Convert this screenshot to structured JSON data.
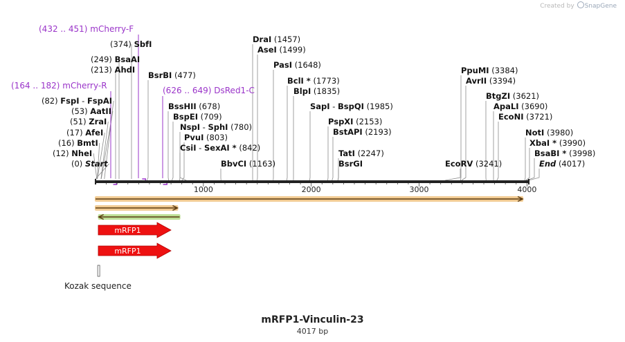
{
  "credit": {
    "prefix": "Created by",
    "brand": "SnapGene"
  },
  "map_title": "mRFP1-Vinculin-23",
  "map_subtitle": "4017 bp",
  "sequence_length": 4017,
  "ruler_ticks": [
    "1000",
    "2000",
    "3000",
    "4000"
  ],
  "sites": [
    {
      "name": "Start",
      "pos": "(0)",
      "bp": 0,
      "italic": true
    },
    {
      "name": "NheI",
      "pos": "(12)",
      "bp": 12
    },
    {
      "name": "BmtI",
      "pos": "(16)",
      "bp": 16
    },
    {
      "name": "AfeI",
      "pos": "(17)",
      "bp": 17
    },
    {
      "name": "ZraI",
      "pos": "(51)",
      "bp": 51
    },
    {
      "name": "AatII",
      "pos": "(53)",
      "bp": 53
    },
    {
      "name": "FspI",
      "name2": "FspAI",
      "pos": "(82)",
      "bp": 82
    },
    {
      "name": "AhdI",
      "pos": "(213)",
      "bp": 213
    },
    {
      "name": "BsaAI",
      "pos": "(249)",
      "bp": 249
    },
    {
      "name": "SbfI",
      "pos": "(374)",
      "bp": 374
    },
    {
      "name": "BsrBI",
      "pos": "(477)",
      "bp": 477
    },
    {
      "name": "BssHII",
      "pos": "(678)",
      "bp": 678
    },
    {
      "name": "BspEI",
      "pos": "(709)",
      "bp": 709
    },
    {
      "name": "NspI",
      "name2": "SphI",
      "pos": "(780)",
      "bp": 780
    },
    {
      "name": "PvuI",
      "pos": "(803)",
      "bp": 803
    },
    {
      "name": "CsiI",
      "name2": "SexAI *",
      "pos": "(842)",
      "bp": 842
    },
    {
      "name": "BbvCI",
      "pos": "(1163)",
      "bp": 1163
    },
    {
      "name": "DraI",
      "pos": "(1457)",
      "bp": 1457
    },
    {
      "name": "AseI",
      "pos": "(1499)",
      "bp": 1499
    },
    {
      "name": "PasI",
      "pos": "(1648)",
      "bp": 1648
    },
    {
      "name": "BclI *",
      "pos": "(1773)",
      "bp": 1773
    },
    {
      "name": "BlpI",
      "pos": "(1835)",
      "bp": 1835
    },
    {
      "name": "SapI",
      "name2": "BspQI",
      "pos": "(1985)",
      "bp": 1985
    },
    {
      "name": "PspXI",
      "pos": "(2153)",
      "bp": 2153
    },
    {
      "name": "BstAPI",
      "pos": "(2193)",
      "bp": 2193
    },
    {
      "name": "TatI",
      "pos": "(2247)",
      "bp": 2247
    },
    {
      "name": "BsrGI",
      "pos": "",
      "bp": 2247
    },
    {
      "name": "EcoRV",
      "pos": "(3241)",
      "bp": 3241
    },
    {
      "name": "PpuMI",
      "pos": "(3384)",
      "bp": 3384
    },
    {
      "name": "AvrII",
      "pos": "(3394)",
      "bp": 3394
    },
    {
      "name": "BtgZI",
      "pos": "(3621)",
      "bp": 3621
    },
    {
      "name": "ApaLI",
      "pos": "(3690)",
      "bp": 3690
    },
    {
      "name": "EcoNI",
      "pos": "(3721)",
      "bp": 3721
    },
    {
      "name": "NotI",
      "pos": "(3980)",
      "bp": 3980
    },
    {
      "name": "XbaI *",
      "pos": "(3990)",
      "bp": 3990
    },
    {
      "name": "BsaBI *",
      "pos": "(3998)",
      "bp": 3998
    },
    {
      "name": "End",
      "pos": "(4017)",
      "bp": 4017,
      "italic": true
    }
  ],
  "primers": [
    {
      "name": "mCherry-F",
      "range": "(432 .. 451)",
      "start": 432,
      "end": 451,
      "direction": "forward"
    },
    {
      "name": "mCherry-R",
      "range": "(164 .. 182)",
      "start": 164,
      "end": 182,
      "direction": "reverse"
    },
    {
      "name": "DsRed1-C",
      "range": "(626 .. 649)",
      "start": 626,
      "end": 649,
      "direction": "reverse"
    }
  ],
  "features": [
    {
      "label": "mRFP1",
      "start": 30,
      "end": 708,
      "color": "#ee1111"
    },
    {
      "label": "mRFP1",
      "start": 30,
      "end": 708,
      "color": "#ee1111"
    }
  ],
  "orfs": [
    {
      "start": 0,
      "end": 3960,
      "direction": "forward",
      "color": "#e8a33d"
    },
    {
      "start": 0,
      "end": 760,
      "direction": "forward",
      "color": "#e8a33d"
    },
    {
      "start": 30,
      "end": 780,
      "direction": "reverse",
      "color": "#86c540"
    }
  ],
  "kozak": {
    "label": "Kozak sequence",
    "start": 20,
    "end": 29
  },
  "colors": {
    "backbone": "#222222",
    "primer": "#9a34c9",
    "feature": "#ee1111",
    "orf_forward": "#e8a33d",
    "orf_reverse": "#86c540"
  }
}
